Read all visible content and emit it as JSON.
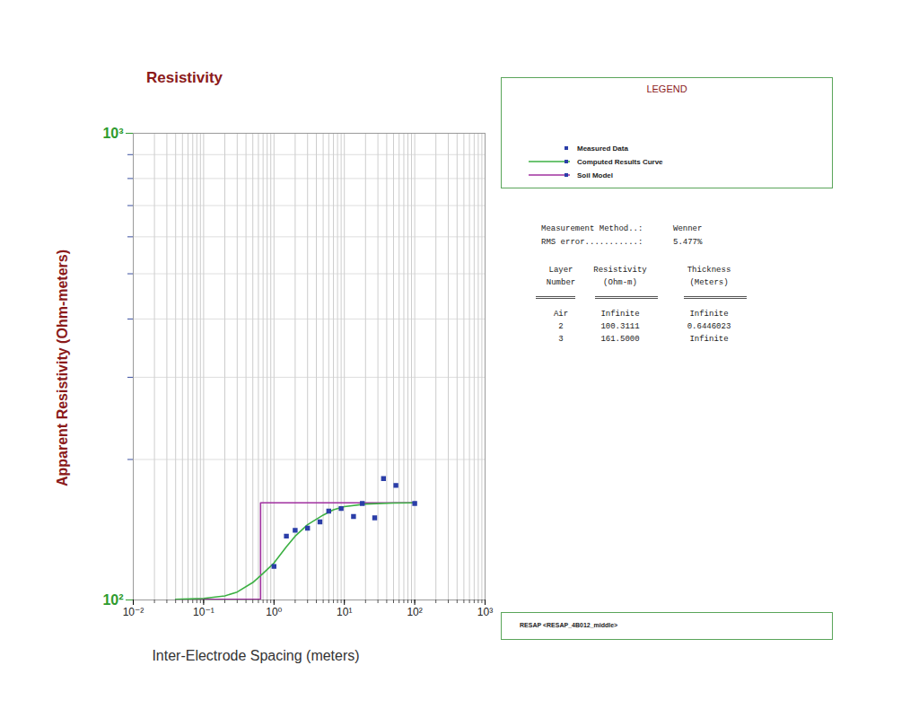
{
  "chart_data": {
    "type": "scatter",
    "title": "Resistivity",
    "x_label": "Inter-Electrode Spacing (meters)",
    "y_label": "Apparent Resistivity (Ohm-meters)",
    "log": true,
    "grid": true,
    "xlim": [
      0.01,
      1000
    ],
    "ylim": [
      100,
      1000
    ],
    "xticks": [
      {
        "value": 0.01,
        "label": "10⁻²"
      },
      {
        "value": 0.1,
        "label": "10⁻¹"
      },
      {
        "value": 1,
        "label": "10⁰"
      },
      {
        "value": 10,
        "label": "10¹"
      },
      {
        "value": 100,
        "label": "10²"
      },
      {
        "value": 1000,
        "label": "10³"
      }
    ],
    "yticks": [
      {
        "value": 100,
        "label": "10²"
      },
      {
        "value": 1000,
        "label": "10³"
      }
    ],
    "legend_title": "LEGEND",
    "series": [
      {
        "name": "Soil Model",
        "type": "step",
        "color": "#a0309f",
        "x": [
          0.04,
          0.6446023,
          100
        ],
        "values": [
          100.3111,
          161.5,
          161.5
        ]
      },
      {
        "name": "Computed Results Curve",
        "type": "line",
        "color": "#3cb043",
        "x": [
          0.04,
          0.1,
          0.2,
          0.3,
          0.5,
          0.7,
          1,
          1.5,
          2,
          3,
          5,
          7,
          10,
          20,
          50,
          100
        ],
        "values": [
          100.3,
          100.8,
          102,
          104,
          109,
          114,
          120,
          130,
          137,
          145,
          152,
          156,
          158.5,
          160.5,
          161.3,
          161.5
        ]
      },
      {
        "name": "Measured Data",
        "type": "scatter",
        "marker": "square",
        "color": "#2b3ea8",
        "x": [
          1,
          1.5,
          2,
          3,
          4.5,
          6,
          9,
          13.5,
          18,
          27,
          36,
          54,
          100
        ],
        "values": [
          118,
          137,
          141,
          142.5,
          147,
          155,
          157,
          151,
          161,
          150,
          182,
          176,
          161
        ]
      }
    ],
    "legend_order": [
      "Measured Data",
      "Computed Results Curve",
      "Soil Model"
    ],
    "model_report": {
      "measurement_method": {
        "label": "Measurement Method..:",
        "value": "Wenner"
      },
      "rms_error": {
        "label": "RMS error...........:",
        "value": "5.477%"
      },
      "table": {
        "header": [
          [
            "Layer",
            "Number"
          ],
          [
            "Resistivity",
            "(Ohm-m)"
          ],
          [
            "Thickness",
            "(Meters)"
          ]
        ],
        "rows": [
          [
            "Air",
            "Infinite",
            "Infinite"
          ],
          [
            "2",
            "100.3111",
            "0.6446023"
          ],
          [
            "3",
            "161.5000",
            "Infinite"
          ]
        ]
      }
    },
    "footer": "RESAP <RESAP_4B012_middle>"
  }
}
